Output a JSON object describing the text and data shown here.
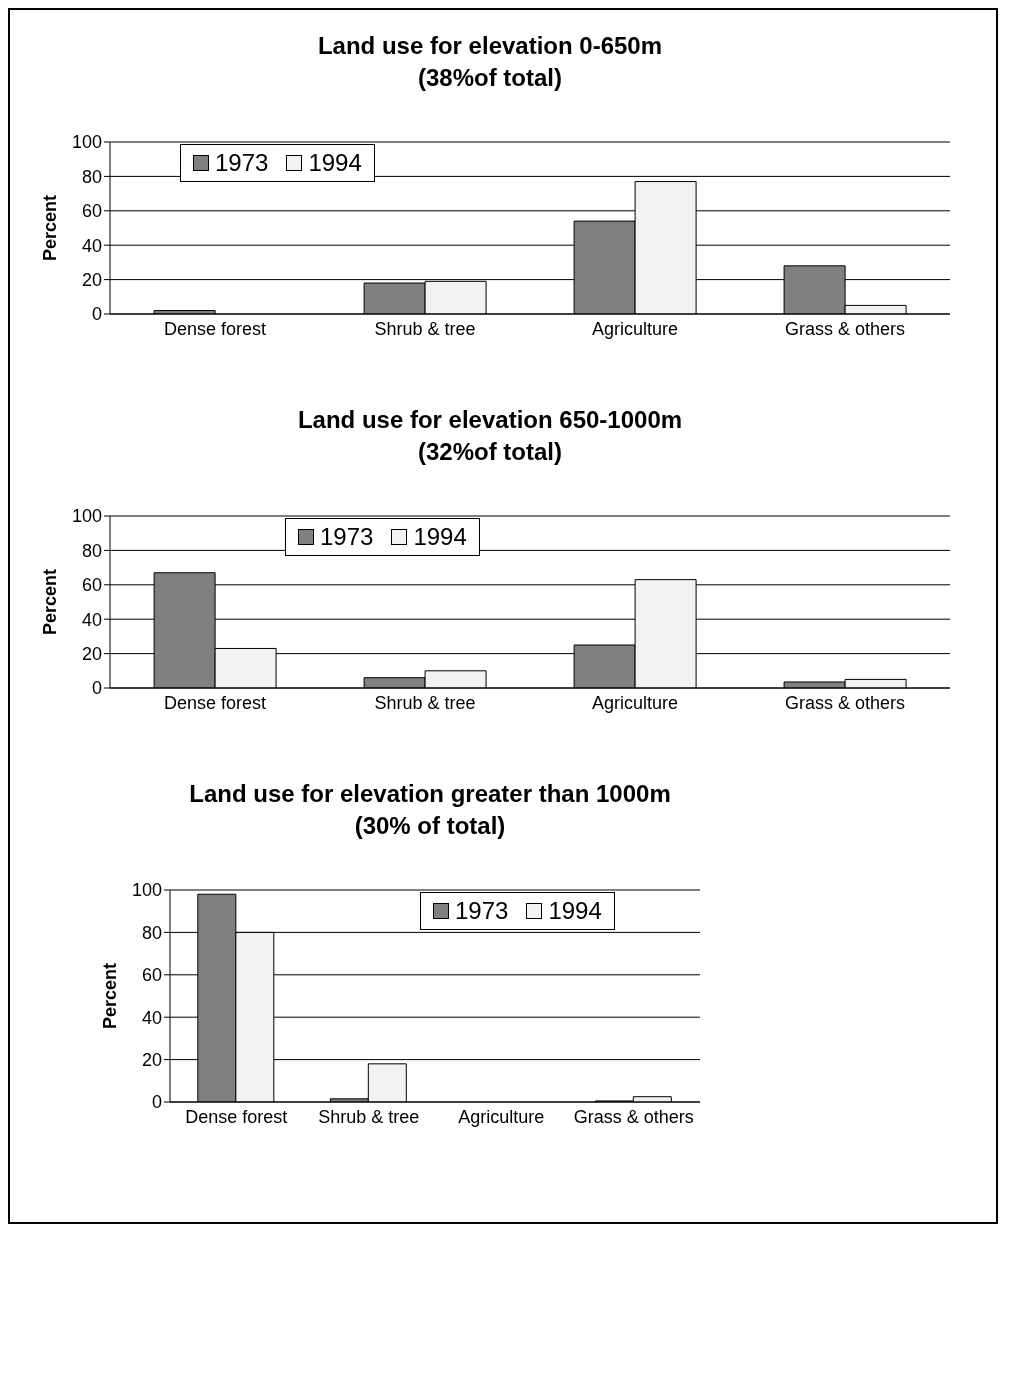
{
  "chart_data": [
    {
      "type": "bar",
      "title": "Land use for elevation 0-650m",
      "subtitle": "(38%of total)",
      "ylabel": "Percent",
      "categories": [
        "Dense forest",
        "Shrub & tree",
        "Agriculture",
        "Grass & others"
      ],
      "series": [
        {
          "name": "1973",
          "color": "#808080",
          "values": [
            2,
            18,
            54,
            28
          ]
        },
        {
          "name": "1994",
          "color": "#f2f2f2",
          "values": [
            0,
            19,
            77,
            5
          ]
        }
      ],
      "ylim": [
        0,
        100
      ],
      "yticks": [
        0,
        20,
        40,
        60,
        80,
        100
      ],
      "grid": "y",
      "legend": "top left"
    },
    {
      "type": "bar",
      "title": "Land use for elevation 650-1000m",
      "subtitle": "(32%of total)",
      "ylabel": "Percent",
      "categories": [
        "Dense forest",
        "Shrub & tree",
        "Agriculture",
        "Grass & others"
      ],
      "series": [
        {
          "name": "1973",
          "color": "#808080",
          "values": [
            67,
            6,
            25,
            3.5
          ]
        },
        {
          "name": "1994",
          "color": "#f2f2f2",
          "values": [
            23,
            10,
            63,
            5
          ]
        }
      ],
      "ylim": [
        0,
        100
      ],
      "yticks": [
        0,
        20,
        40,
        60,
        80,
        100
      ],
      "grid": "y",
      "legend": "top"
    },
    {
      "type": "bar",
      "title": "Land use for elevation greater than 1000m",
      "subtitle": "(30% of total)",
      "ylabel": "Percent",
      "categories": [
        "Dense forest",
        "Shrub & tree",
        "Agriculture",
        "Grass & others"
      ],
      "series": [
        {
          "name": "1973",
          "color": "#808080",
          "values": [
            98,
            1.5,
            0,
            0.5
          ]
        },
        {
          "name": "1994",
          "color": "#f2f2f2",
          "values": [
            80,
            18,
            0,
            2.5
          ]
        }
      ],
      "ylim": [
        0,
        100
      ],
      "yticks": [
        0,
        20,
        40,
        60,
        80,
        100
      ],
      "grid": "y",
      "legend": "top"
    }
  ]
}
